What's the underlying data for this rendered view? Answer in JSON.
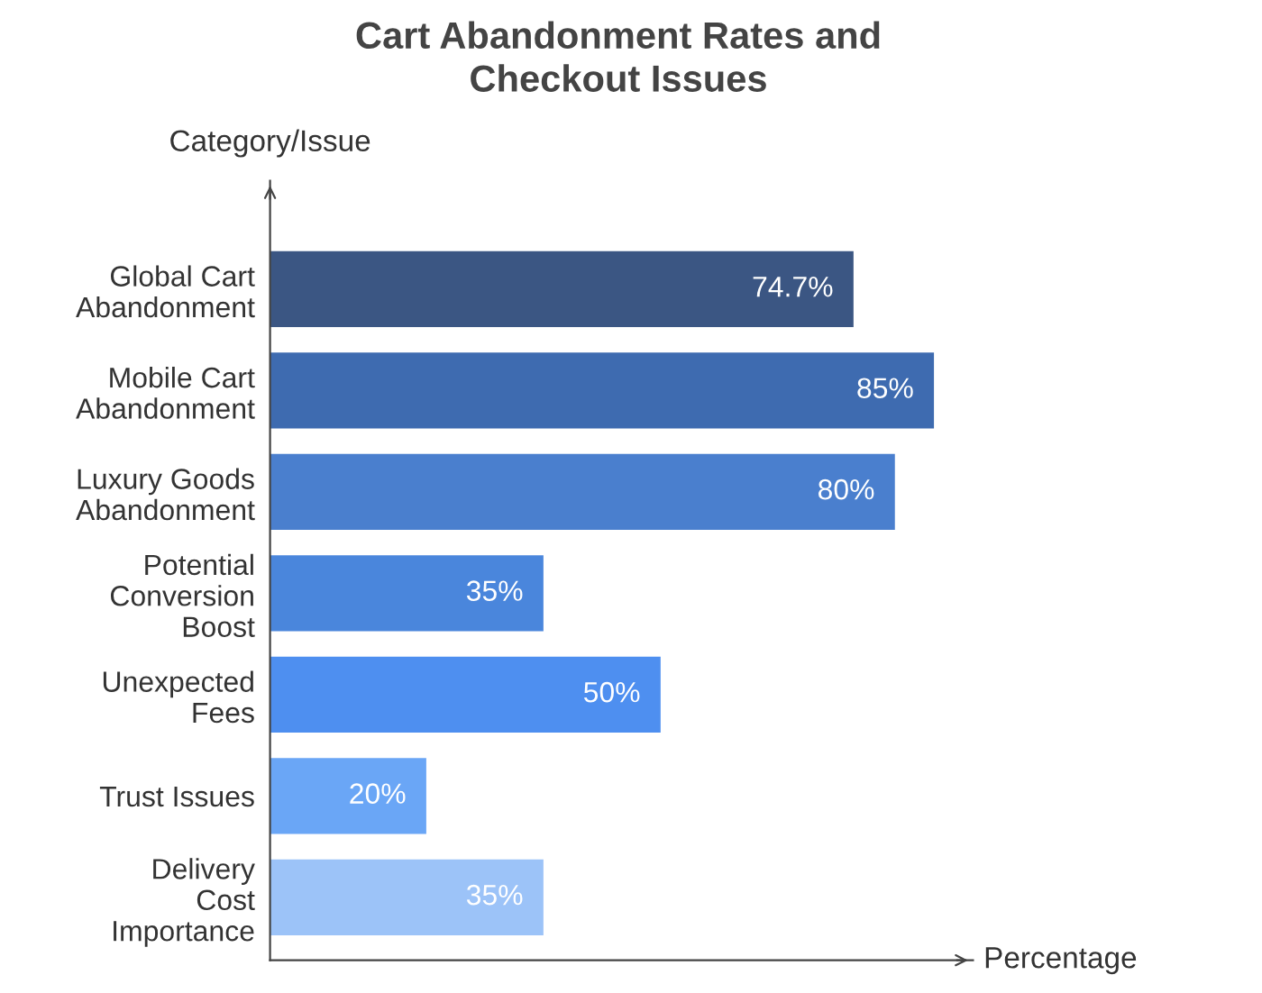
{
  "chart_data": {
    "type": "bar",
    "orientation": "horizontal",
    "title": "Cart Abandonment Rates and\nCheckout Issues",
    "xlabel": "Percentage",
    "ylabel": "Category/Issue",
    "categories": [
      "Global Cart\nAbandonment",
      "Mobile Cart\nAbandonment",
      "Luxury Goods\nAbandonment",
      "Potential\nConversion\nBoost",
      "Unexpected\nFees",
      "Trust Issues",
      "Delivery\nCost\nImportance"
    ],
    "values": [
      74.7,
      85,
      80,
      35,
      50,
      20,
      35
    ],
    "value_labels": [
      "74.7%",
      "85%",
      "80%",
      "35%",
      "50%",
      "20%",
      "35%"
    ],
    "colors": [
      "#3b5683",
      "#3e6bb0",
      "#4a7fce",
      "#4a86dc",
      "#4e8ff0",
      "#6aa6f6",
      "#9cc3f8"
    ],
    "xlim": [
      0,
      90
    ],
    "tick_labels": "y",
    "grid": false,
    "legend": false
  }
}
